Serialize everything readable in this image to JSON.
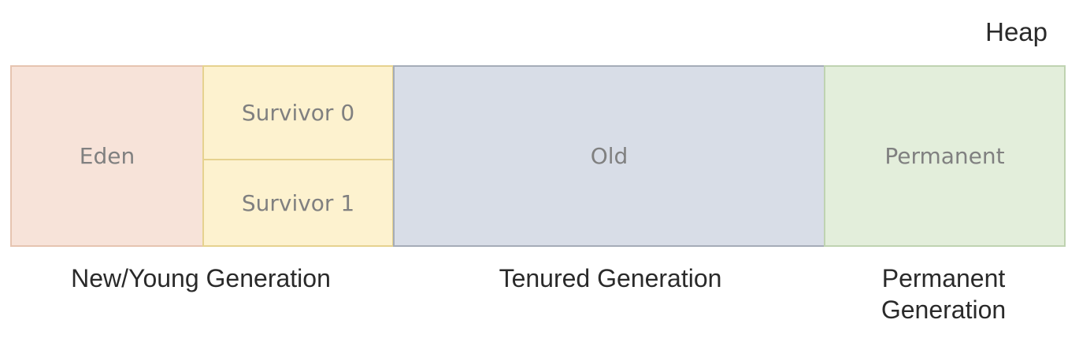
{
  "heap_title": "Heap",
  "regions": {
    "eden": "Eden",
    "survivor0": "Survivor 0",
    "survivor1": "Survivor 1",
    "old": "Old",
    "permanent": "Permanent"
  },
  "generations": {
    "young": "New/Young Generation",
    "tenured": "Tenured Generation",
    "permanent_line1": "Permanent",
    "permanent_line2": "Generation"
  },
  "colors": {
    "eden": "#f7e3d9",
    "survivor": "#fdf2cf",
    "old": "#d8dde7",
    "permanent": "#e3eedb"
  }
}
